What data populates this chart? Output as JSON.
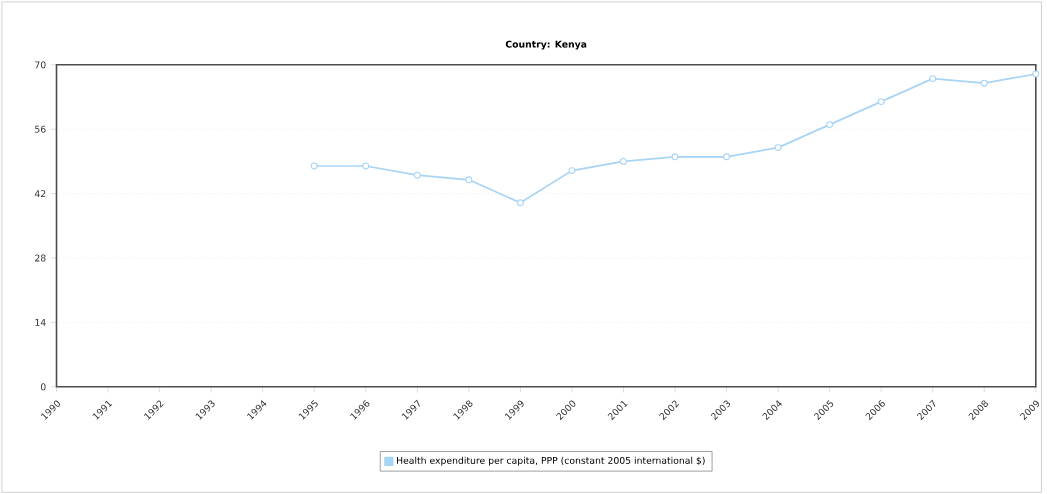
{
  "chart_data": {
    "type": "line",
    "title": "Country: Kenya",
    "x": [
      1995,
      1996,
      1997,
      1998,
      1999,
      2000,
      2001,
      2002,
      2003,
      2004,
      2005,
      2006,
      2007,
      2008,
      2009
    ],
    "series": [
      {
        "name": "Health expenditure per capita, PPP (constant 2005 international $)",
        "color": "#a8d4f5",
        "values": [
          48,
          48,
          46,
          45,
          40,
          47,
          49,
          50,
          50,
          52,
          57,
          62,
          67,
          66,
          68
        ]
      }
    ],
    "xlim": [
      1990,
      2009
    ],
    "xticks": [
      1990,
      1991,
      1992,
      1993,
      1994,
      1995,
      1996,
      1997,
      1998,
      1999,
      2000,
      2001,
      2002,
      2003,
      2004,
      2005,
      2006,
      2007,
      2008,
      2009
    ],
    "ylim": [
      0,
      70
    ],
    "yticks": [
      0,
      14,
      28,
      42,
      56,
      70
    ],
    "grid": "y",
    "legend": "bottom",
    "marker": "circle",
    "line_style": "solid"
  }
}
